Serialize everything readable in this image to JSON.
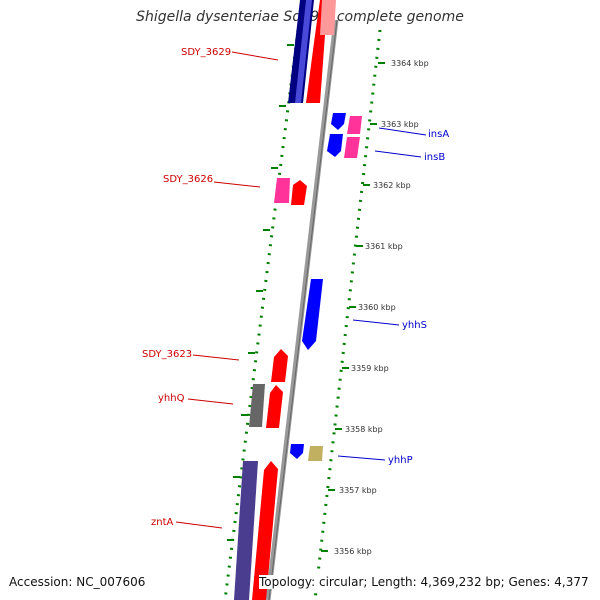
{
  "title": "Shigella dysenteriae Sd197, complete genome",
  "accession": "Accession: NC_007606",
  "topology": "Topology: circular; Length: 4,369,232 bp; Genes: 4,377",
  "colors": {
    "forward_gene": "#ff0000",
    "reverse_gene": "#0000ff",
    "other_gene": "#ff3399",
    "pseudo_gene": "#666666",
    "trna": "#c0b060",
    "backbone": "#999999",
    "tick": "#008000",
    "left_label": "#cc0000",
    "right_label": "#0000cc"
  },
  "kbp_ticks": [
    "3364 kbp",
    "3363 kbp",
    "3362 kbp",
    "3361 kbp",
    "3360 kbp",
    "3359 kbp",
    "3358 kbp",
    "3357 kbp",
    "3356 kbp"
  ],
  "gene_labels": {
    "left": [
      "SDY_3629",
      "SDY_3626",
      "SDY_3623",
      "yhhQ",
      "zntA"
    ],
    "right": [
      "insA",
      "insB",
      "yhhS",
      "yhhP"
    ]
  }
}
